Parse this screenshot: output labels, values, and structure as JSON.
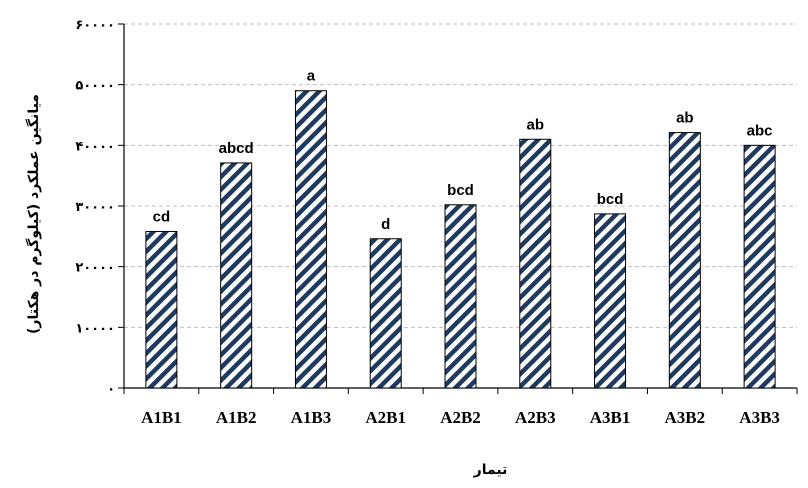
{
  "chart_data": {
    "type": "bar",
    "title": "",
    "xlabel": "تیمار",
    "ylabel": "میانگین عملکرد (کیلوگرم در هکتار)",
    "categories": [
      "A1B1",
      "A1B2",
      "A1B3",
      "A2B1",
      "A2B2",
      "A2B3",
      "A3B1",
      "A3B2",
      "A3B3"
    ],
    "values": [
      25800,
      37100,
      49000,
      24600,
      30200,
      41000,
      28700,
      42100,
      40000
    ],
    "letters": [
      "cd",
      "abcd",
      "a",
      "d",
      "bcd",
      "ab",
      "bcd",
      "ab",
      "abc"
    ],
    "ylim": [
      0,
      60000
    ],
    "yticks": [
      0,
      10000,
      20000,
      30000,
      40000,
      50000,
      60000
    ],
    "ytick_labels": [
      "۰",
      "۱۰۰۰۰",
      "۲۰۰۰۰",
      "۳۰۰۰۰",
      "۴۰۰۰۰",
      "۵۰۰۰۰",
      "۶۰۰۰۰"
    ],
    "grid": true,
    "legend": "none",
    "bar_pattern": "diagonal-stripes",
    "colors": {
      "bar_stripe": "#1f3a5f",
      "bar_background": "#ffffff",
      "axis": "#000000",
      "grid": "#bfbfbf"
    }
  }
}
